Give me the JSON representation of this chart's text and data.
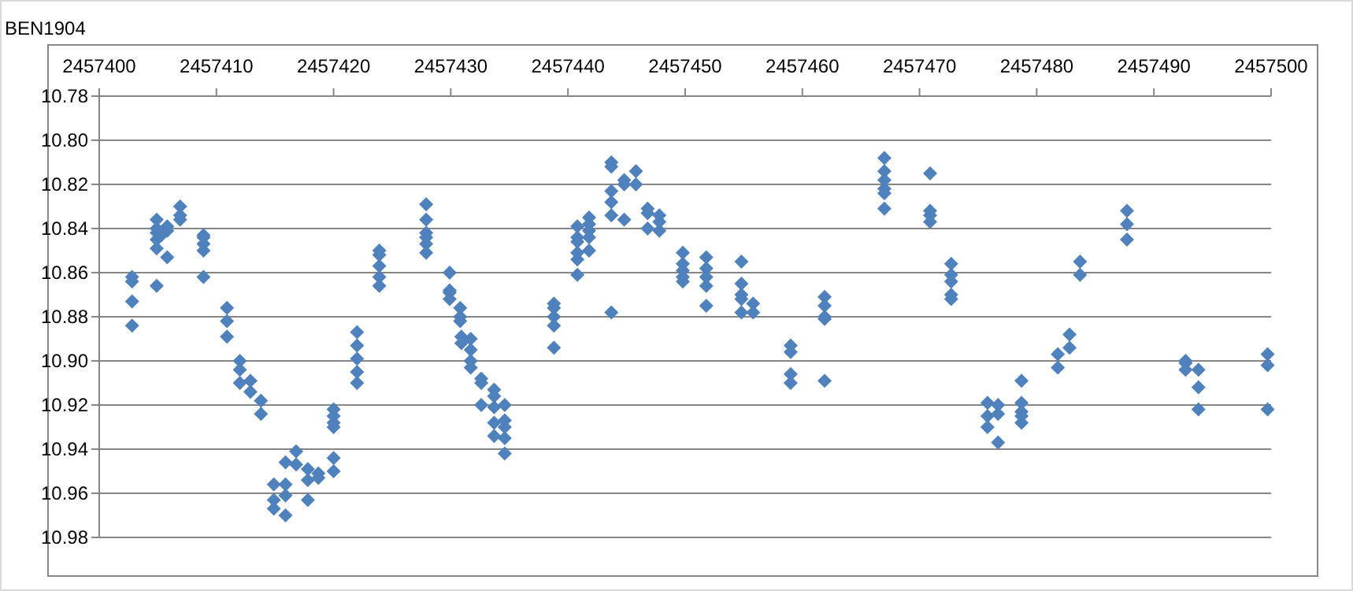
{
  "chart_data": {
    "type": "scatter",
    "title": "BEN1904",
    "xlim": [
      2457400,
      2457500
    ],
    "xticks": [
      2457400,
      2457410,
      2457420,
      2457430,
      2457440,
      2457450,
      2457460,
      2457470,
      2457480,
      2457490,
      2457500
    ],
    "ylim": [
      10.98,
      10.78
    ],
    "yticks": [
      10.78,
      {
        "value": 10.8,
        "label": "10.80"
      },
      10.82,
      10.84,
      10.86,
      10.88,
      {
        "value": 10.9,
        "label": "10.90"
      },
      10.92,
      10.94,
      10.96,
      10.98
    ],
    "grid": "y",
    "marker": "diamond",
    "series": [
      {
        "color": "#4f81bd",
        "x": [
          2457402.8,
          2457402.8,
          2457402.8,
          2457402.8,
          2457404.9,
          2457404.9,
          2457404.9,
          2457404.9,
          2457404.9,
          2457404.9,
          2457405.3,
          2457405.8,
          2457405.8,
          2457405.8,
          2457406.9,
          2457406.9,
          2457406.9,
          2457408.9,
          2457408.9,
          2457408.9,
          2457408.9,
          2457408.9,
          2457410.9,
          2457410.9,
          2457410.9,
          2457412.0,
          2457412.0,
          2457412.0,
          2457412.9,
          2457412.9,
          2457413.8,
          2457413.8,
          2457414.9,
          2457414.9,
          2457414.9,
          2457415.9,
          2457415.9,
          2457415.9,
          2457415.9,
          2457416.8,
          2457416.8,
          2457417.8,
          2457417.8,
          2457417.8,
          2457418.7,
          2457418.7,
          2457420.0,
          2457420.0,
          2457420.0,
          2457420.0,
          2457420.0,
          2457420.0,
          2457422.0,
          2457422.0,
          2457422.0,
          2457422.0,
          2457422.0,
          2457423.9,
          2457423.9,
          2457423.9,
          2457423.9,
          2457423.9,
          2457427.9,
          2457427.9,
          2457427.9,
          2457427.9,
          2457427.9,
          2457427.9,
          2457429.9,
          2457429.9,
          2457429.9,
          2457429.9,
          2457430.8,
          2457430.8,
          2457430.8,
          2457430.9,
          2457430.9,
          2457431.7,
          2457431.7,
          2457431.7,
          2457431.7,
          2457432.6,
          2457432.6,
          2457432.6,
          2457433.7,
          2457433.7,
          2457433.7,
          2457433.7,
          2457433.7,
          2457434.6,
          2457434.6,
          2457434.6,
          2457434.6,
          2457434.6,
          2457438.8,
          2457438.8,
          2457438.8,
          2457438.8,
          2457438.8,
          2457440.8,
          2457440.8,
          2457440.8,
          2457440.8,
          2457440.8,
          2457440.8,
          2457441.8,
          2457441.8,
          2457441.8,
          2457441.8,
          2457441.8,
          2457443.7,
          2457443.7,
          2457443.7,
          2457443.7,
          2457443.7,
          2457443.7,
          2457444.8,
          2457444.8,
          2457444.8,
          2457445.8,
          2457445.8,
          2457446.8,
          2457446.8,
          2457446.8,
          2457447.8,
          2457447.8,
          2457447.8,
          2457449.8,
          2457449.8,
          2457449.8,
          2457449.8,
          2457449.8,
          2457451.8,
          2457451.8,
          2457451.8,
          2457451.8,
          2457451.8,
          2457454.8,
          2457454.8,
          2457454.8,
          2457454.8,
          2457454.8,
          2457455.8,
          2457455.8,
          2457459.0,
          2457459.0,
          2457459.0,
          2457459.0,
          2457461.9,
          2457461.9,
          2457461.9,
          2457461.9,
          2457461.9,
          2457467.0,
          2457467.0,
          2457467.0,
          2457467.0,
          2457467.0,
          2457467.0,
          2457470.9,
          2457470.9,
          2457470.9,
          2457470.9,
          2457472.7,
          2457472.7,
          2457472.7,
          2457472.7,
          2457472.7,
          2457475.8,
          2457475.8,
          2457475.8,
          2457476.7,
          2457476.7,
          2457476.7,
          2457478.7,
          2457478.7,
          2457478.7,
          2457478.7,
          2457478.7,
          2457481.8,
          2457481.8,
          2457482.8,
          2457482.8,
          2457483.7,
          2457483.7,
          2457487.7,
          2457487.7,
          2457487.7,
          2457492.7,
          2457492.7,
          2457492.7,
          2457493.8,
          2457493.8,
          2457493.8,
          2457499.7,
          2457499.7,
          2457499.7
        ],
        "values": [
          10.862,
          10.864,
          10.873,
          10.884,
          10.836,
          10.84,
          10.842,
          10.845,
          10.849,
          10.866,
          10.843,
          10.839,
          10.841,
          10.853,
          10.83,
          10.834,
          10.836,
          10.843,
          10.844,
          10.847,
          10.85,
          10.862,
          10.876,
          10.882,
          10.889,
          10.9,
          10.904,
          10.91,
          10.909,
          10.914,
          10.918,
          10.924,
          10.956,
          10.963,
          10.967,
          10.946,
          10.956,
          10.961,
          10.97,
          10.941,
          10.947,
          10.949,
          10.954,
          10.963,
          10.951,
          10.953,
          10.922,
          10.925,
          10.928,
          10.93,
          10.944,
          10.95,
          10.887,
          10.893,
          10.899,
          10.905,
          10.91,
          10.85,
          10.852,
          10.857,
          10.862,
          10.866,
          10.829,
          10.836,
          10.842,
          10.844,
          10.847,
          10.851,
          10.86,
          10.868,
          10.869,
          10.872,
          10.876,
          10.88,
          10.882,
          10.889,
          10.892,
          10.89,
          10.895,
          10.9,
          10.903,
          10.908,
          10.91,
          10.92,
          10.913,
          10.916,
          10.921,
          10.928,
          10.934,
          10.92,
          10.927,
          10.93,
          10.935,
          10.942,
          10.874,
          10.876,
          10.88,
          10.884,
          10.894,
          10.839,
          10.844,
          10.846,
          10.851,
          10.854,
          10.861,
          10.835,
          10.838,
          10.841,
          10.844,
          10.85,
          10.81,
          10.812,
          10.823,
          10.828,
          10.834,
          10.878,
          10.818,
          10.82,
          10.836,
          10.814,
          10.82,
          10.831,
          10.833,
          10.84,
          10.834,
          10.837,
          10.841,
          10.851,
          10.856,
          10.859,
          10.862,
          10.864,
          10.853,
          10.858,
          10.862,
          10.866,
          10.875,
          10.855,
          10.865,
          10.87,
          10.872,
          10.878,
          10.874,
          10.878,
          10.893,
          10.896,
          10.906,
          10.91,
          10.871,
          10.875,
          10.88,
          10.881,
          10.909,
          10.808,
          10.814,
          10.818,
          10.822,
          10.824,
          10.831,
          10.815,
          10.832,
          10.834,
          10.837,
          10.856,
          10.861,
          10.864,
          10.87,
          10.872,
          10.919,
          10.925,
          10.93,
          10.92,
          10.924,
          10.937,
          10.909,
          10.919,
          10.923,
          10.925,
          10.928,
          10.897,
          10.903,
          10.888,
          10.894,
          10.855,
          10.861,
          10.832,
          10.838,
          10.845,
          10.9,
          10.901,
          10.904,
          10.904,
          10.912,
          10.922,
          10.897,
          10.902,
          10.922
        ]
      }
    ]
  }
}
